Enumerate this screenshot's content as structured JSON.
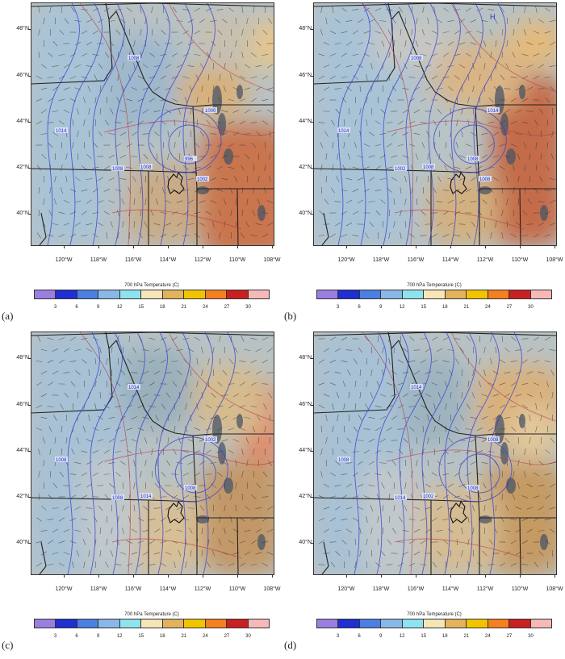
{
  "figure": {
    "lat_labels": [
      "48°N",
      "46°N",
      "44°N",
      "42°N",
      "40°N"
    ],
    "lon_labels": [
      "120°W",
      "118°W",
      "116°W",
      "114°W",
      "112°W",
      "110°W",
      "108°W"
    ],
    "colorbar": {
      "title": "700 hPa Temperature  (C)",
      "colors": [
        "#9b7fe0",
        "#1f2fd1",
        "#4b7fe0",
        "#89b7e8",
        "#8fe3ee",
        "#f5e6b8",
        "#e2b25c",
        "#f2c400",
        "#f48020",
        "#c82121",
        "#f7b8b8"
      ],
      "tick_labels": [
        "3",
        "6",
        "9",
        "12",
        "15",
        "18",
        "21",
        "24",
        "27",
        "30"
      ]
    },
    "panels": [
      {
        "label": "(a)",
        "isobar_labels": [
          "1008",
          "1014",
          "1008",
          "1008",
          "1000",
          "996",
          "1002"
        ],
        "highs": []
      },
      {
        "label": "(b)",
        "isobar_labels": [
          "1008",
          "1014",
          "1008",
          "1002",
          "1014",
          "1008",
          "1008"
        ],
        "highs": [
          "H"
        ]
      },
      {
        "label": "(c)",
        "isobar_labels": [
          "1014",
          "1008",
          "1014",
          "1008",
          "1002",
          "1008"
        ],
        "highs": []
      },
      {
        "label": "(d)",
        "isobar_labels": [
          "1014",
          "1008",
          "1002",
          "1014",
          "1008",
          "1008"
        ],
        "highs": []
      }
    ]
  }
}
